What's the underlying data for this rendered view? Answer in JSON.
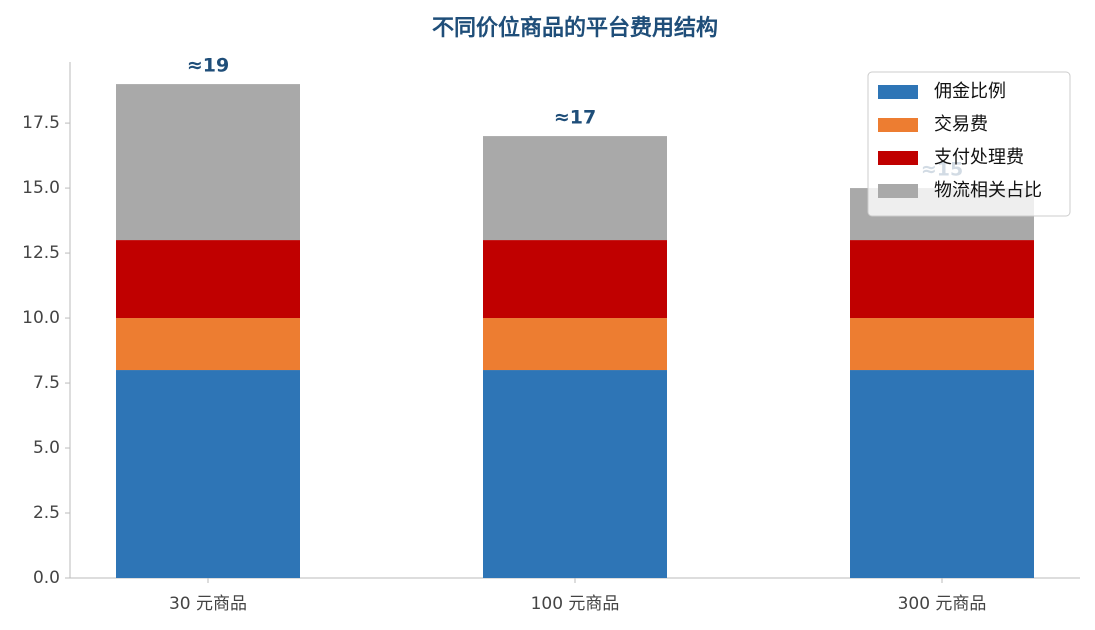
{
  "chart_data": {
    "type": "stacked_bar",
    "title": "不同价位商品的平台费用结构",
    "categories": [
      "30 元商品",
      "100 元商品",
      "300 元商品"
    ],
    "series": [
      {
        "name": "佣金比例",
        "color": "#2e75b6",
        "values": [
          8,
          8,
          8
        ]
      },
      {
        "name": "交易费",
        "color": "#ed7d31",
        "values": [
          2,
          2,
          2
        ]
      },
      {
        "name": "支付处理费",
        "color": "#c00000",
        "values": [
          3,
          3,
          3
        ]
      },
      {
        "name": "物流相关占比",
        "color": "#a9a9a9",
        "values": [
          6,
          4,
          2
        ]
      }
    ],
    "annotations": [
      "≈19",
      "≈17",
      "≈15"
    ],
    "ylim": [
      0,
      19.85
    ],
    "yticks": [
      {
        "value": 0,
        "label": "0.0"
      },
      2.5,
      {
        "value": 5,
        "label": "5.0"
      },
      7.5,
      {
        "value": 10,
        "label": "10.0"
      },
      12.5,
      {
        "value": 15,
        "label": "15.0"
      },
      17.5
    ],
    "legend": "upper right"
  }
}
